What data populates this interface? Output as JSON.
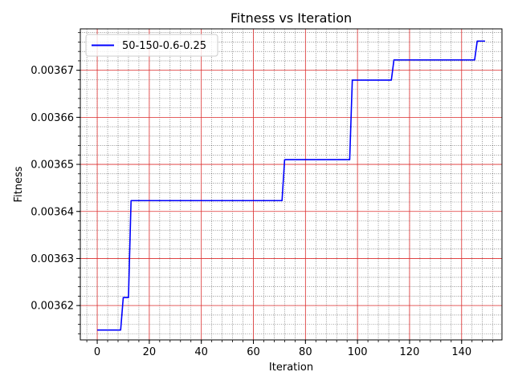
{
  "chart_data": {
    "type": "line",
    "title": "Fitness vs Iteration",
    "xlabel": "Iteration",
    "ylabel": "Fitness",
    "xlim": [
      -6.5,
      155.5
    ],
    "ylim": [
      0.0036127,
      0.0036788
    ],
    "x_ticks": [
      0,
      20,
      40,
      60,
      80,
      100,
      120,
      140
    ],
    "x_tick_labels": [
      "0",
      "20",
      "40",
      "60",
      "80",
      "100",
      "120",
      "140"
    ],
    "x_minor_step": 4,
    "y_ticks": [
      0.00362,
      0.00363,
      0.00364,
      0.00365,
      0.00366,
      0.00367
    ],
    "y_tick_labels": [
      "0.00362",
      "0.00363",
      "0.00364",
      "0.00365",
      "0.00366",
      "0.00367"
    ],
    "y_minor_step": 2e-06,
    "grid": {
      "major": true,
      "minor": true,
      "major_color": "#e03030",
      "minor_color": "#555555"
    },
    "legend": {
      "position": "top-left"
    },
    "series": [
      {
        "name": "50-150-0.6-0.25",
        "color": "#0000ff",
        "x": [
          0,
          9,
          10,
          12,
          13,
          71,
          72,
          97,
          98,
          113,
          114,
          145,
          146,
          149
        ],
        "y": [
          0.0036148,
          0.0036148,
          0.0036217,
          0.0036217,
          0.0036423,
          0.0036423,
          0.003651,
          0.003651,
          0.0036679,
          0.0036679,
          0.0036722,
          0.0036722,
          0.0036762,
          0.0036762
        ],
        "drawstyle": "linear"
      }
    ]
  }
}
